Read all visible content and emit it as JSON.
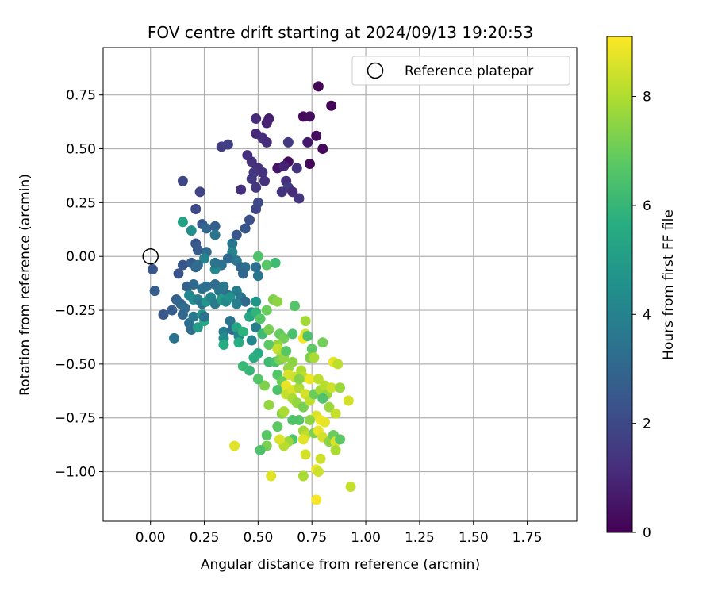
{
  "chart_data": {
    "type": "scatter",
    "title": "FOV centre drift starting at 2024/09/13 19:20:53",
    "xlabel": "Angular distance from reference (arcmin)",
    "ylabel": "Rotation from reference (arcmin)",
    "colorbar_label": "Hours from first FF file",
    "legend_label": "Reference platepar",
    "legend_position": "top-right",
    "grid": true,
    "xlim": [
      -0.22,
      1.98
    ],
    "ylim": [
      -1.23,
      0.97
    ],
    "clim": [
      0,
      9.1
    ],
    "colormap": "viridis",
    "xticks": [
      0.0,
      0.25,
      0.5,
      0.75,
      1.0,
      1.25,
      1.5,
      1.75
    ],
    "xtick_labels": [
      "0.00",
      "0.25",
      "0.50",
      "0.75",
      "1.00",
      "1.25",
      "1.50",
      "1.75"
    ],
    "yticks": [
      0.75,
      0.5,
      0.25,
      0.0,
      -0.25,
      -0.5,
      -0.75,
      -1.0
    ],
    "ytick_labels": [
      "0.75",
      "0.50",
      "0.25",
      "0.00",
      "−0.25",
      "−0.50",
      "−0.75",
      "−1.00"
    ],
    "cticks": [
      0,
      2,
      4,
      6,
      8
    ],
    "ctick_labels": [
      "0",
      "2",
      "4",
      "6",
      "8"
    ],
    "reference_point": {
      "x": 0.0,
      "y": 0.0
    },
    "points": [
      {
        "x": 0.78,
        "y": 0.79,
        "h": 0.1
      },
      {
        "x": 0.84,
        "y": 0.7,
        "h": 0.1
      },
      {
        "x": 0.71,
        "y": 0.65,
        "h": 0.2
      },
      {
        "x": 0.74,
        "y": 0.65,
        "h": 0.3
      },
      {
        "x": 0.77,
        "y": 0.56,
        "h": 0.3
      },
      {
        "x": 0.8,
        "y": 0.5,
        "h": 0.2
      },
      {
        "x": 0.74,
        "y": 0.43,
        "h": 0.2
      },
      {
        "x": 0.73,
        "y": 0.53,
        "h": 0.6
      },
      {
        "x": 0.64,
        "y": 0.44,
        "h": 0.3
      },
      {
        "x": 0.59,
        "y": 0.41,
        "h": 0.5
      },
      {
        "x": 0.62,
        "y": 0.42,
        "h": 0.9
      },
      {
        "x": 0.68,
        "y": 0.41,
        "h": 1.3
      },
      {
        "x": 0.55,
        "y": 0.64,
        "h": 0.8
      },
      {
        "x": 0.54,
        "y": 0.62,
        "h": 0.9
      },
      {
        "x": 0.49,
        "y": 0.64,
        "h": 1.1
      },
      {
        "x": 0.49,
        "y": 0.57,
        "h": 1.0
      },
      {
        "x": 0.52,
        "y": 0.55,
        "h": 1.2
      },
      {
        "x": 0.54,
        "y": 0.53,
        "h": 1.1
      },
      {
        "x": 0.64,
        "y": 0.53,
        "h": 1.5
      },
      {
        "x": 0.47,
        "y": 0.44,
        "h": 1.3
      },
      {
        "x": 0.5,
        "y": 0.41,
        "h": 1.2
      },
      {
        "x": 0.52,
        "y": 0.39,
        "h": 1.3
      },
      {
        "x": 0.48,
        "y": 0.39,
        "h": 1.4
      },
      {
        "x": 0.45,
        "y": 0.47,
        "h": 1.2
      },
      {
        "x": 0.47,
        "y": 0.36,
        "h": 1.5
      },
      {
        "x": 0.53,
        "y": 0.35,
        "h": 1.3
      },
      {
        "x": 0.49,
        "y": 0.32,
        "h": 1.4
      },
      {
        "x": 0.42,
        "y": 0.31,
        "h": 1.2
      },
      {
        "x": 0.63,
        "y": 0.35,
        "h": 1.2
      },
      {
        "x": 0.64,
        "y": 0.32,
        "h": 1.6
      },
      {
        "x": 0.61,
        "y": 0.3,
        "h": 1.3
      },
      {
        "x": 0.66,
        "y": 0.3,
        "h": 1.1
      },
      {
        "x": 0.69,
        "y": 0.27,
        "h": 1.4
      },
      {
        "x": 0.33,
        "y": 0.51,
        "h": 1.6
      },
      {
        "x": 0.36,
        "y": 0.52,
        "h": 1.7
      },
      {
        "x": 0.15,
        "y": 0.35,
        "h": 1.9
      },
      {
        "x": 0.23,
        "y": 0.3,
        "h": 1.8
      },
      {
        "x": 0.5,
        "y": 0.25,
        "h": 2.0
      },
      {
        "x": 0.49,
        "y": 0.22,
        "h": 1.9
      },
      {
        "x": 0.46,
        "y": 0.17,
        "h": 2.2
      },
      {
        "x": 0.44,
        "y": 0.13,
        "h": 2.4
      },
      {
        "x": 0.4,
        "y": 0.1,
        "h": 2.4
      },
      {
        "x": 0.21,
        "y": 0.22,
        "h": 2.0
      },
      {
        "x": 0.24,
        "y": 0.15,
        "h": 2.6
      },
      {
        "x": 0.26,
        "y": 0.13,
        "h": 3.0
      },
      {
        "x": 0.3,
        "y": 0.14,
        "h": 2.8
      },
      {
        "x": 0.3,
        "y": 0.1,
        "h": 3.5
      },
      {
        "x": 0.15,
        "y": 0.16,
        "h": 5.2
      },
      {
        "x": 0.19,
        "y": 0.12,
        "h": 4.5
      },
      {
        "x": 0.38,
        "y": 0.06,
        "h": 3.5
      },
      {
        "x": 0.38,
        "y": 0.02,
        "h": 4.0
      },
      {
        "x": 0.21,
        "y": 0.06,
        "h": 2.5
      },
      {
        "x": 0.22,
        "y": 0.03,
        "h": 2.6
      },
      {
        "x": 0.26,
        "y": 0.02,
        "h": 3.2
      },
      {
        "x": 0.25,
        "y": -0.01,
        "h": 4.0
      },
      {
        "x": 0.36,
        "y": -0.01,
        "h": 3.1
      },
      {
        "x": 0.4,
        "y": -0.02,
        "h": 3.6
      },
      {
        "x": 0.42,
        "y": -0.05,
        "h": 3.0
      },
      {
        "x": 0.44,
        "y": -0.05,
        "h": 3.3
      },
      {
        "x": 0.33,
        "y": -0.04,
        "h": 3.4
      },
      {
        "x": 0.3,
        "y": -0.06,
        "h": 4.2
      },
      {
        "x": 0.3,
        "y": -0.03,
        "h": 3.5
      },
      {
        "x": 0.01,
        "y": -0.06,
        "h": 2.4
      },
      {
        "x": 0.13,
        "y": -0.08,
        "h": 2.3
      },
      {
        "x": 0.15,
        "y": -0.04,
        "h": 2.4
      },
      {
        "x": 0.19,
        "y": -0.03,
        "h": 2.7
      },
      {
        "x": 0.21,
        "y": -0.05,
        "h": 3.1
      },
      {
        "x": 0.22,
        "y": -0.04,
        "h": 3.2
      },
      {
        "x": 0.43,
        "y": -0.08,
        "h": 3.0
      },
      {
        "x": 0.5,
        "y": -0.09,
        "h": 3.5
      },
      {
        "x": 0.49,
        "y": -0.05,
        "h": 3.3
      },
      {
        "x": 0.02,
        "y": -0.16,
        "h": 2.7
      },
      {
        "x": 0.17,
        "y": -0.14,
        "h": 2.8
      },
      {
        "x": 0.2,
        "y": -0.13,
        "h": 3.1
      },
      {
        "x": 0.24,
        "y": -0.15,
        "h": 3.4
      },
      {
        "x": 0.26,
        "y": -0.14,
        "h": 3.3
      },
      {
        "x": 0.3,
        "y": -0.13,
        "h": 3.2
      },
      {
        "x": 0.32,
        "y": -0.16,
        "h": 3.5
      },
      {
        "x": 0.34,
        "y": -0.14,
        "h": 3.6
      },
      {
        "x": 0.36,
        "y": -0.18,
        "h": 3.3
      },
      {
        "x": 0.4,
        "y": -0.16,
        "h": 3.8
      },
      {
        "x": 0.42,
        "y": -0.19,
        "h": 3.6
      },
      {
        "x": 0.44,
        "y": -0.21,
        "h": 3.1
      },
      {
        "x": 0.12,
        "y": -0.2,
        "h": 2.8
      },
      {
        "x": 0.14,
        "y": -0.22,
        "h": 3.0
      },
      {
        "x": 0.16,
        "y": -0.24,
        "h": 3.2
      },
      {
        "x": 0.18,
        "y": -0.18,
        "h": 4.2
      },
      {
        "x": 0.2,
        "y": -0.2,
        "h": 4.4
      },
      {
        "x": 0.22,
        "y": -0.2,
        "h": 3.9
      },
      {
        "x": 0.24,
        "y": -0.22,
        "h": 3.5
      },
      {
        "x": 0.26,
        "y": -0.21,
        "h": 4.7
      },
      {
        "x": 0.28,
        "y": -0.19,
        "h": 4.1
      },
      {
        "x": 0.3,
        "y": -0.22,
        "h": 3.7
      },
      {
        "x": 0.33,
        "y": -0.2,
        "h": 4.9
      },
      {
        "x": 0.35,
        "y": -0.21,
        "h": 4.3
      },
      {
        "x": 0.37,
        "y": -0.19,
        "h": 4.6
      },
      {
        "x": 0.4,
        "y": -0.22,
        "h": 3.9
      },
      {
        "x": 0.47,
        "y": -0.26,
        "h": 4.5
      },
      {
        "x": 0.49,
        "y": -0.21,
        "h": 4.7
      },
      {
        "x": 0.06,
        "y": -0.27,
        "h": 2.5
      },
      {
        "x": 0.1,
        "y": -0.25,
        "h": 2.7
      },
      {
        "x": 0.15,
        "y": -0.27,
        "h": 3.0
      },
      {
        "x": 0.18,
        "y": -0.31,
        "h": 3.3
      },
      {
        "x": 0.2,
        "y": -0.28,
        "h": 3.6
      },
      {
        "x": 0.24,
        "y": -0.27,
        "h": 4.8
      },
      {
        "x": 0.25,
        "y": -0.3,
        "h": 5.5
      },
      {
        "x": 0.19,
        "y": -0.34,
        "h": 3.2
      },
      {
        "x": 0.22,
        "y": -0.33,
        "h": 5.0
      },
      {
        "x": 0.25,
        "y": -0.28,
        "h": 3.4
      },
      {
        "x": 0.11,
        "y": -0.38,
        "h": 3.4
      },
      {
        "x": 0.34,
        "y": -0.35,
        "h": 3.9
      },
      {
        "x": 0.34,
        "y": -0.38,
        "h": 4.4
      },
      {
        "x": 0.34,
        "y": -0.41,
        "h": 5.6
      },
      {
        "x": 0.37,
        "y": -0.3,
        "h": 3.5
      },
      {
        "x": 0.38,
        "y": -0.34,
        "h": 3.3
      },
      {
        "x": 0.4,
        "y": -0.33,
        "h": 5.3
      },
      {
        "x": 0.41,
        "y": -0.37,
        "h": 4.2
      },
      {
        "x": 0.41,
        "y": -0.4,
        "h": 5.6
      },
      {
        "x": 0.43,
        "y": -0.35,
        "h": 5.8
      },
      {
        "x": 0.47,
        "y": -0.39,
        "h": 4.2
      },
      {
        "x": 0.49,
        "y": -0.33,
        "h": 3.8
      },
      {
        "x": 0.46,
        "y": -0.28,
        "h": 5.4
      },
      {
        "x": 0.49,
        "y": -0.26,
        "h": 5.9
      },
      {
        "x": 0.5,
        "y": -0.45,
        "h": 5.5
      },
      {
        "x": 0.48,
        "y": -0.47,
        "h": 5.7
      },
      {
        "x": 0.46,
        "y": -0.53,
        "h": 6.0
      },
      {
        "x": 0.43,
        "y": -0.51,
        "h": 6.1
      },
      {
        "x": 0.5,
        "y": 0.0,
        "h": 6.5
      },
      {
        "x": 0.54,
        "y": -0.04,
        "h": 6.7
      },
      {
        "x": 0.58,
        "y": -0.03,
        "h": 6.2
      },
      {
        "x": 0.57,
        "y": -0.2,
        "h": 7.3
      },
      {
        "x": 0.54,
        "y": -0.25,
        "h": 7.0
      },
      {
        "x": 0.51,
        "y": -0.29,
        "h": 6.6
      },
      {
        "x": 0.52,
        "y": -0.36,
        "h": 6.2
      },
      {
        "x": 0.55,
        "y": -0.34,
        "h": 7.2
      },
      {
        "x": 0.59,
        "y": -0.21,
        "h": 7.5
      },
      {
        "x": 0.6,
        "y": -0.36,
        "h": 6.9
      },
      {
        "x": 0.62,
        "y": -0.38,
        "h": 7.1
      },
      {
        "x": 0.59,
        "y": -0.41,
        "h": 7.6
      },
      {
        "x": 0.55,
        "y": -0.41,
        "h": 6.8
      },
      {
        "x": 0.59,
        "y": -0.43,
        "h": 8.3
      },
      {
        "x": 0.61,
        "y": -0.45,
        "h": 8.1
      },
      {
        "x": 0.55,
        "y": -0.49,
        "h": 6.2
      },
      {
        "x": 0.58,
        "y": -0.49,
        "h": 6.4
      },
      {
        "x": 0.6,
        "y": -0.48,
        "h": 7.2
      },
      {
        "x": 0.62,
        "y": -0.47,
        "h": 7.6
      },
      {
        "x": 0.63,
        "y": -0.44,
        "h": 6.7
      },
      {
        "x": 0.67,
        "y": -0.23,
        "h": 6.6
      },
      {
        "x": 0.66,
        "y": -0.36,
        "h": 6.4
      },
      {
        "x": 0.72,
        "y": -0.3,
        "h": 7.8
      },
      {
        "x": 0.72,
        "y": -0.36,
        "h": 8.5
      },
      {
        "x": 0.71,
        "y": -0.38,
        "h": 9.0
      },
      {
        "x": 0.73,
        "y": -0.37,
        "h": 6.5
      },
      {
        "x": 0.75,
        "y": -0.43,
        "h": 6.8
      },
      {
        "x": 0.74,
        "y": -0.47,
        "h": 7.3
      },
      {
        "x": 0.76,
        "y": -0.47,
        "h": 7.9
      },
      {
        "x": 0.8,
        "y": -0.4,
        "h": 7.1
      },
      {
        "x": 0.85,
        "y": -0.49,
        "h": 8.8
      },
      {
        "x": 0.87,
        "y": -0.5,
        "h": 8.2
      },
      {
        "x": 0.64,
        "y": -0.52,
        "h": 7.6
      },
      {
        "x": 0.66,
        "y": -0.49,
        "h": 7.5
      },
      {
        "x": 0.64,
        "y": -0.55,
        "h": 8.6
      },
      {
        "x": 0.67,
        "y": -0.56,
        "h": 8.4
      },
      {
        "x": 0.7,
        "y": -0.53,
        "h": 8.0
      },
      {
        "x": 0.71,
        "y": -0.56,
        "h": 8.2
      },
      {
        "x": 0.59,
        "y": -0.55,
        "h": 6.6
      },
      {
        "x": 0.59,
        "y": -0.62,
        "h": 6.5
      },
      {
        "x": 0.61,
        "y": -0.58,
        "h": 7.0
      },
      {
        "x": 0.63,
        "y": -0.6,
        "h": 8.8
      },
      {
        "x": 0.63,
        "y": -0.64,
        "h": 8.3
      },
      {
        "x": 0.66,
        "y": -0.62,
        "h": 8.6
      },
      {
        "x": 0.69,
        "y": -0.61,
        "h": 8.0
      },
      {
        "x": 0.72,
        "y": -0.64,
        "h": 8.5
      },
      {
        "x": 0.66,
        "y": -0.66,
        "h": 7.9
      },
      {
        "x": 0.68,
        "y": -0.68,
        "h": 7.6
      },
      {
        "x": 0.71,
        "y": -0.7,
        "h": 7.2
      },
      {
        "x": 0.74,
        "y": -0.67,
        "h": 8.2
      },
      {
        "x": 0.76,
        "y": -0.64,
        "h": 7.0
      },
      {
        "x": 0.79,
        "y": -0.62,
        "h": 7.8
      },
      {
        "x": 0.81,
        "y": -0.6,
        "h": 8.1
      },
      {
        "x": 0.82,
        "y": -0.64,
        "h": 7.6
      },
      {
        "x": 0.84,
        "y": -0.61,
        "h": 8.4
      },
      {
        "x": 0.88,
        "y": -0.61,
        "h": 7.7
      },
      {
        "x": 0.92,
        "y": -0.67,
        "h": 8.5
      },
      {
        "x": 0.8,
        "y": -0.66,
        "h": 6.5
      },
      {
        "x": 0.83,
        "y": -0.7,
        "h": 7.7
      },
      {
        "x": 0.86,
        "y": -0.73,
        "h": 8.3
      },
      {
        "x": 0.77,
        "y": -0.74,
        "h": 8.6
      },
      {
        "x": 0.79,
        "y": -0.76,
        "h": 8.9
      },
      {
        "x": 0.81,
        "y": -0.77,
        "h": 8.8
      },
      {
        "x": 0.74,
        "y": -0.76,
        "h": 7.5
      },
      {
        "x": 0.69,
        "y": -0.76,
        "h": 6.6
      },
      {
        "x": 0.66,
        "y": -0.76,
        "h": 6.5
      },
      {
        "x": 0.61,
        "y": -0.73,
        "h": 7.4
      },
      {
        "x": 0.62,
        "y": -0.72,
        "h": 7.9
      },
      {
        "x": 0.55,
        "y": -0.69,
        "h": 7.6
      },
      {
        "x": 0.59,
        "y": -0.79,
        "h": 6.8
      },
      {
        "x": 0.71,
        "y": -0.81,
        "h": 7.8
      },
      {
        "x": 0.72,
        "y": -0.83,
        "h": 8.2
      },
      {
        "x": 0.71,
        "y": -0.85,
        "h": 8.7
      },
      {
        "x": 0.76,
        "y": -0.82,
        "h": 7.3
      },
      {
        "x": 0.78,
        "y": -0.81,
        "h": 8.8
      },
      {
        "x": 0.8,
        "y": -0.84,
        "h": 8.5
      },
      {
        "x": 0.83,
        "y": -0.86,
        "h": 7.5
      },
      {
        "x": 0.85,
        "y": -0.83,
        "h": 7.0
      },
      {
        "x": 0.86,
        "y": -0.86,
        "h": 8.6
      },
      {
        "x": 0.88,
        "y": -0.85,
        "h": 6.8
      },
      {
        "x": 0.86,
        "y": -0.9,
        "h": 7.9
      },
      {
        "x": 0.66,
        "y": -0.85,
        "h": 6.5
      },
      {
        "x": 0.64,
        "y": -0.86,
        "h": 7.7
      },
      {
        "x": 0.62,
        "y": -0.88,
        "h": 8.1
      },
      {
        "x": 0.6,
        "y": -0.85,
        "h": 8.6
      },
      {
        "x": 0.54,
        "y": -0.83,
        "h": 6.7
      },
      {
        "x": 0.54,
        "y": -0.88,
        "h": 7.2
      },
      {
        "x": 0.51,
        "y": -0.9,
        "h": 6.5
      },
      {
        "x": 0.39,
        "y": -0.88,
        "h": 8.7
      },
      {
        "x": 0.72,
        "y": -0.92,
        "h": 8.5
      },
      {
        "x": 0.79,
        "y": -0.94,
        "h": 8.4
      },
      {
        "x": 0.77,
        "y": -0.99,
        "h": 8.9
      },
      {
        "x": 0.78,
        "y": -1.0,
        "h": 8.4
      },
      {
        "x": 0.71,
        "y": -1.02,
        "h": 7.9
      },
      {
        "x": 0.56,
        "y": -1.02,
        "h": 8.7
      },
      {
        "x": 0.93,
        "y": -1.07,
        "h": 8.3
      },
      {
        "x": 0.77,
        "y": -1.13,
        "h": 9.0
      },
      {
        "x": 0.53,
        "y": -0.6,
        "h": 7.3
      },
      {
        "x": 0.5,
        "y": -0.57,
        "h": 6.6
      },
      {
        "x": 0.69,
        "y": -0.57,
        "h": 7.4
      },
      {
        "x": 0.74,
        "y": -0.57,
        "h": 8.9
      },
      {
        "x": 0.78,
        "y": -0.57,
        "h": 8.2
      }
    ]
  }
}
